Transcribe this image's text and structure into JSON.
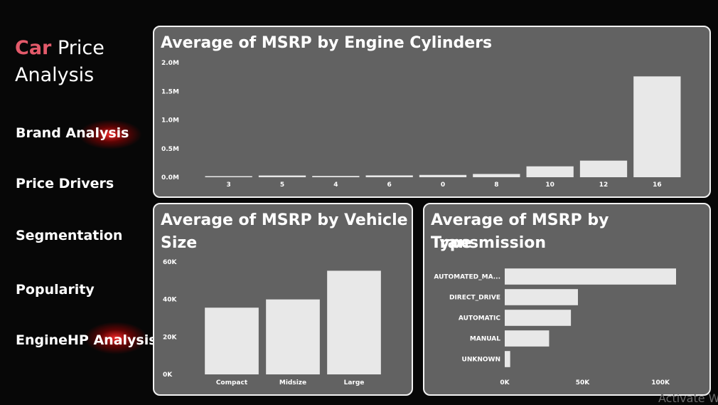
{
  "sidebar": {
    "title_accent": "Car",
    "title_rest": " Price",
    "title_line2": "Analysis",
    "items": [
      {
        "label": "Brand Analysis"
      },
      {
        "label": "Price Drivers"
      },
      {
        "label": "Segmentation"
      },
      {
        "label": "Popularity"
      },
      {
        "label": "EngineHP Analysis"
      }
    ]
  },
  "panels": {
    "cylinders_title": "Average of MSRP by Engine Cylinders",
    "size_title_line1": "Average of MSRP by Vehicle",
    "size_title_line2": "Size",
    "transmission_title_line1": "Average of MSRP by Transmission",
    "transmission_title_line2": "Type"
  },
  "watermark": "Activate W",
  "colors": {
    "accent": "#e35a6a",
    "bar": "#e8e8e8",
    "panel_bg": "#626262",
    "panel_border": "#f2f2f2"
  },
  "chart_data": [
    {
      "type": "bar",
      "title": "Average of MSRP by Engine Cylinders",
      "categories": [
        "3",
        "5",
        "4",
        "6",
        "0",
        "8",
        "10",
        "12",
        "16"
      ],
      "values": [
        14000,
        30000,
        22000,
        32000,
        40000,
        57000,
        190000,
        290000,
        1760000
      ],
      "ylim": [
        0,
        2000000
      ],
      "yticks": [
        "0.0M",
        "0.5M",
        "1.0M",
        "1.5M",
        "2.0M"
      ],
      "ytick_values": [
        0,
        500000,
        1000000,
        1500000,
        2000000
      ],
      "grid": false
    },
    {
      "type": "bar",
      "title": "Average of MSRP by Vehicle Size",
      "categories": [
        "Compact",
        "Midsize",
        "Large"
      ],
      "values": [
        35600,
        40000,
        55300
      ],
      "ylim": [
        0,
        60000
      ],
      "yticks": [
        "0K",
        "20K",
        "40K",
        "60K"
      ],
      "ytick_values": [
        0,
        20000,
        40000,
        60000
      ],
      "grid": false
    },
    {
      "type": "bar",
      "orientation": "horizontal",
      "title": "Average of MSRP by Transmission Type",
      "categories": [
        "AUTOMATED_MA...",
        "DIRECT_DRIVE",
        "AUTOMATIC",
        "MANUAL",
        "UNKNOWN"
      ],
      "values": [
        110000,
        47000,
        42500,
        28500,
        3500
      ],
      "xlim": [
        0,
        110000
      ],
      "xticks": [
        "0K",
        "50K",
        "100K"
      ],
      "xtick_values": [
        0,
        50000,
        100000
      ],
      "grid": false
    }
  ]
}
